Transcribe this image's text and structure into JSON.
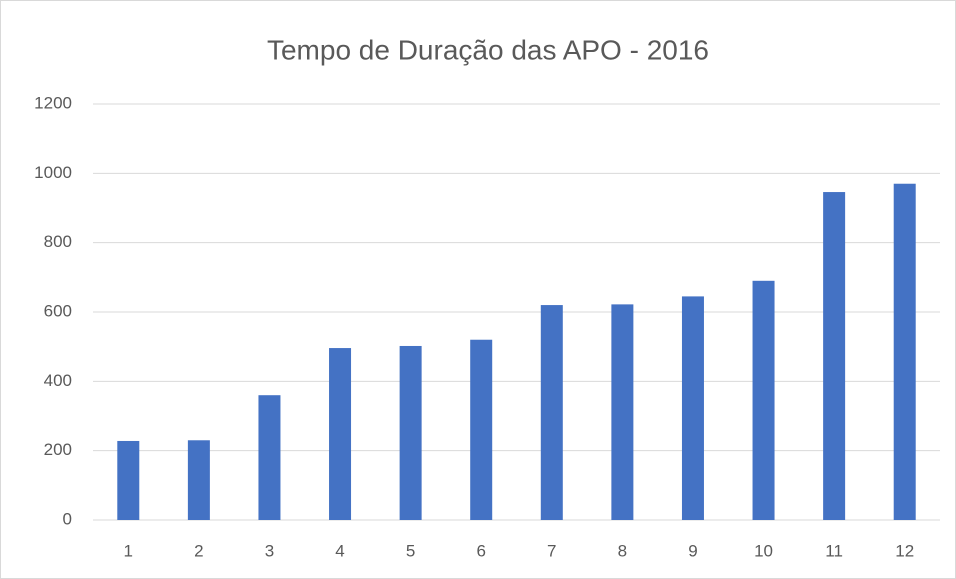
{
  "chart_data": {
    "type": "bar",
    "title": "Tempo de Duração das APO - 2016",
    "categories": [
      "1",
      "2",
      "3",
      "4",
      "5",
      "6",
      "7",
      "8",
      "9",
      "10",
      "11",
      "12"
    ],
    "values": [
      228,
      230,
      360,
      496,
      502,
      520,
      620,
      622,
      645,
      690,
      946,
      970
    ],
    "color": "#4472c4",
    "ylim": [
      0,
      1200
    ],
    "yticks": [
      0,
      200,
      400,
      600,
      800,
      1000,
      1200
    ],
    "grid": true
  }
}
